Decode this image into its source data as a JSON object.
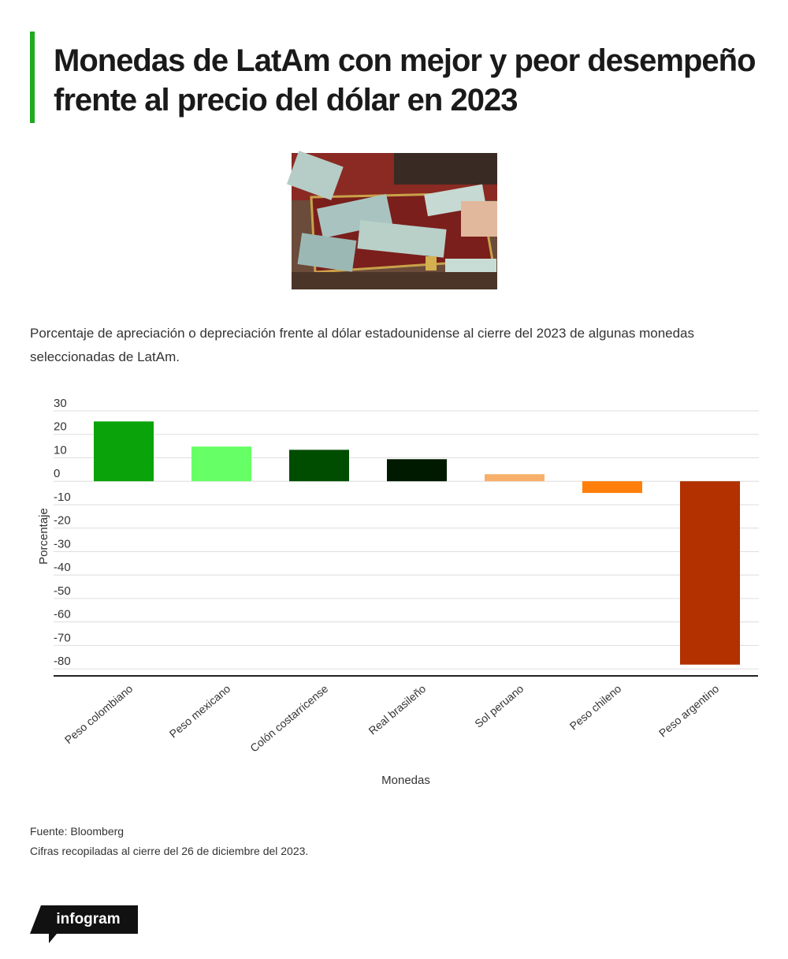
{
  "chart_data": {
    "type": "bar",
    "title": "Monedas de LatAm con mejor y peor desempeño frente al precio del dólar en 2023",
    "subtitle": "Porcentaje de apreciación o depreciación frente al dólar estadounidense al cierre del 2023 de algunas monedas seleccionadas de LatAm.",
    "x_label": "Monedas",
    "y_label": "Porcentaje",
    "categories": [
      "Peso colombiano",
      "Peso mexicano",
      "Colón costarricense",
      "Real brasileño",
      "Sol peruano",
      "Peso chileno",
      "Peso argentino"
    ],
    "values": [
      25.5,
      14.8,
      13.4,
      9.4,
      3.0,
      -5.0,
      -78.2
    ],
    "colors": [
      "#0aa30a",
      "#66ff66",
      "#004d00",
      "#001a00",
      "#f7b06b",
      "#ff7f0a",
      "#b33000"
    ],
    "ylim": [
      -83,
      30
    ],
    "yticks": [
      30,
      20,
      10,
      0,
      -10,
      -20,
      -30,
      -40,
      -50,
      -60,
      -70,
      -80
    ],
    "grid": true
  },
  "footer": {
    "source": "Fuente: Bloomberg",
    "note": "Cifras recopiladas al cierre del 26 de diciembre del 2023.",
    "brand": "infogram"
  }
}
